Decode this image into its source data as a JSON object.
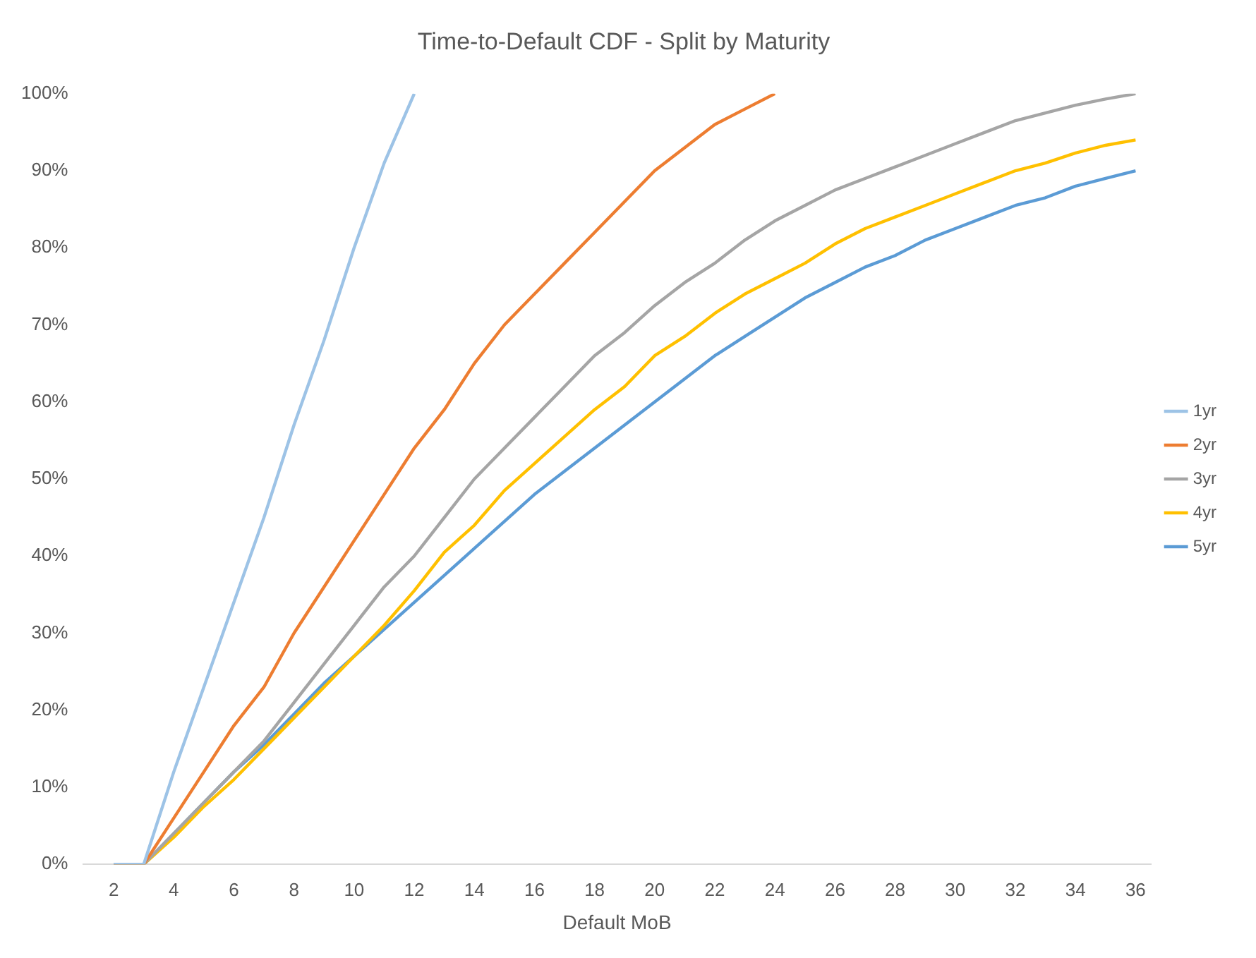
{
  "chart_data": {
    "type": "line",
    "title": "Time-to-Default CDF - Split by Maturity",
    "xlabel": "Default MoB",
    "x": [
      2,
      3,
      4,
      5,
      6,
      7,
      8,
      9,
      10,
      11,
      12,
      13,
      14,
      15,
      16,
      17,
      18,
      19,
      20,
      21,
      22,
      23,
      24,
      25,
      26,
      27,
      28,
      29,
      30,
      31,
      32,
      33,
      34,
      35,
      36
    ],
    "xlim": [
      1,
      36.5
    ],
    "xticks": [
      2,
      4,
      6,
      8,
      10,
      12,
      14,
      16,
      18,
      20,
      22,
      24,
      26,
      28,
      30,
      32,
      34,
      36
    ],
    "ylim": [
      0,
      100
    ],
    "yticks": [
      {
        "value": 0,
        "label": "0%"
      },
      {
        "value": 10,
        "label": "10%"
      },
      {
        "value": 20,
        "label": "20%"
      },
      {
        "value": 30,
        "label": "30%"
      },
      {
        "value": 40,
        "label": "40%"
      },
      {
        "value": 50,
        "label": "50%"
      },
      {
        "value": 60,
        "label": "60%"
      },
      {
        "value": 70,
        "label": "70%"
      },
      {
        "value": 80,
        "label": "80%"
      },
      {
        "value": 90,
        "label": "90%"
      },
      {
        "value": 100,
        "label": "100%"
      }
    ],
    "legend": "right",
    "marker": "none",
    "line_style": "solid",
    "series": [
      {
        "name": "1yr",
        "color": "#9dc3e6",
        "values": [
          0,
          0,
          12,
          23,
          34,
          45,
          57,
          68,
          80,
          91,
          100,
          null,
          null,
          null,
          null,
          null,
          null,
          null,
          null,
          null,
          null,
          null,
          null,
          null,
          null,
          null,
          null,
          null,
          null,
          null,
          null,
          null,
          null,
          null,
          null
        ]
      },
      {
        "name": "2yr",
        "color": "#ed7d31",
        "values": [
          0,
          0,
          6,
          12,
          18,
          23,
          30,
          36,
          42,
          48,
          54,
          59,
          65,
          70,
          74,
          78,
          82,
          86,
          90,
          93,
          96,
          98,
          100,
          null,
          null,
          null,
          null,
          null,
          null,
          null,
          null,
          null,
          null,
          null,
          null
        ]
      },
      {
        "name": "3yr",
        "color": "#a5a5a5",
        "values": [
          0,
          0,
          4,
          8,
          12,
          16,
          21,
          26,
          31,
          36,
          40,
          45,
          50,
          54,
          58,
          62,
          66,
          69,
          72.5,
          75.5,
          78,
          81,
          83.5,
          85.5,
          87.5,
          89,
          90.5,
          92,
          93.5,
          95,
          96.5,
          97.5,
          98.5,
          99.3,
          100
        ]
      },
      {
        "name": "4yr",
        "color": "#ffc000",
        "values": [
          0,
          0,
          3.5,
          7.5,
          11,
          15,
          19,
          23,
          27,
          31,
          35.5,
          40.5,
          44,
          48.5,
          52,
          55.5,
          59,
          62,
          66,
          68.5,
          71.5,
          74,
          76,
          78,
          80.5,
          82.5,
          84,
          85.5,
          87,
          88.5,
          90,
          91,
          92.3,
          93.3,
          94
        ]
      },
      {
        "name": "5yr",
        "color": "#5b9bd5",
        "values": [
          0,
          0,
          4,
          8,
          12,
          15.5,
          19.5,
          23.5,
          27,
          30.5,
          34,
          37.5,
          41,
          44.5,
          48,
          51,
          54,
          57,
          60,
          63,
          66,
          68.5,
          71,
          73.5,
          75.5,
          77.5,
          79,
          81,
          82.5,
          84,
          85.5,
          86.5,
          88,
          89,
          90
        ]
      }
    ]
  }
}
